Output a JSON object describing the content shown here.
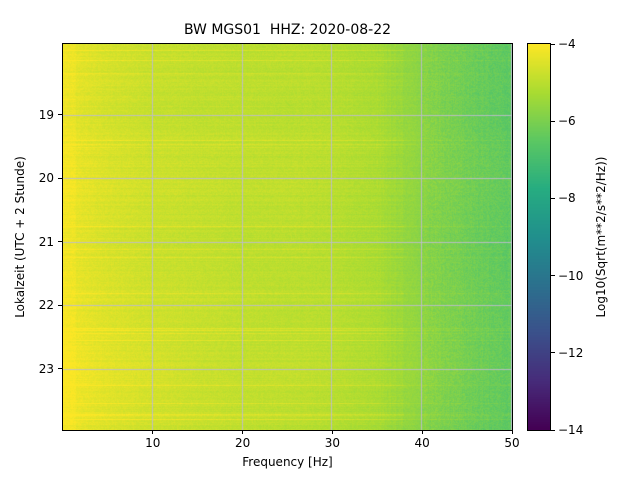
{
  "title": "BW MGS01  HHZ: 2020-08-22",
  "xlabel": "Frequency [Hz]",
  "ylabel": "Lokalzeit (UTC + 2 Stunde)",
  "axes": {
    "x_tick_labels": [
      "10",
      "20",
      "30",
      "40",
      "50"
    ],
    "y_tick_labels": [
      "19",
      "20",
      "21",
      "22",
      "23"
    ]
  },
  "colorbar": {
    "label": "Log10(Sqrt(m**2/s**2/Hz))",
    "min": -14,
    "max": -4,
    "ticks": [
      -4,
      -6,
      -8,
      -10,
      -12,
      -14
    ],
    "tick_labels": [
      "−4",
      "−6",
      "−8",
      "−10",
      "−12",
      "−14"
    ]
  },
  "chart_data": {
    "type": "heatmap",
    "title": "BW MGS01  HHZ: 2020-08-22",
    "xlabel": "Frequency [Hz]",
    "ylabel": "Lokalzeit (UTC + 2 Stunde)",
    "value_label": "Log10(Sqrt(m**2/s**2/Hz))",
    "colormap": "viridis",
    "grid": true,
    "grid_color": "#bcbccd",
    "background": "#ffffff",
    "xlim": [
      0,
      50
    ],
    "ylim": [
      17.88,
      23.97
    ],
    "y_direction": "down",
    "x_ticks": [
      10,
      20,
      30,
      40,
      50
    ],
    "y_ticks": [
      19,
      20,
      21,
      22,
      23
    ],
    "value_range": [
      -14,
      -4
    ],
    "freqs": [
      0,
      5,
      10,
      15,
      20,
      25,
      30,
      35,
      40,
      45,
      50
    ],
    "times": [
      18,
      19,
      20,
      21,
      22,
      23,
      24
    ],
    "values": [
      [
        -4.3,
        -4.6,
        -4.8,
        -4.9,
        -5.0,
        -5.0,
        -5.1,
        -5.3,
        -5.8,
        -6.2,
        -6.5
      ],
      [
        -4.3,
        -4.6,
        -4.8,
        -4.9,
        -4.9,
        -5.0,
        -5.0,
        -5.2,
        -5.7,
        -6.2,
        -6.5
      ],
      [
        -4.2,
        -4.5,
        -4.7,
        -4.8,
        -4.9,
        -4.9,
        -5.0,
        -5.2,
        -5.7,
        -6.1,
        -6.4
      ],
      [
        -4.3,
        -4.6,
        -4.8,
        -4.9,
        -5.0,
        -5.0,
        -5.1,
        -5.3,
        -5.8,
        -6.2,
        -6.5
      ],
      [
        -4.2,
        -4.5,
        -4.7,
        -4.8,
        -4.9,
        -5.0,
        -5.0,
        -5.2,
        -5.7,
        -6.1,
        -6.4
      ],
      [
        -4.1,
        -4.4,
        -4.6,
        -4.8,
        -4.9,
        -4.9,
        -5.0,
        -5.2,
        -5.6,
        -6.1,
        -6.4
      ],
      [
        -4.2,
        -4.5,
        -4.7,
        -4.8,
        -4.9,
        -5.0,
        -5.1,
        -5.3,
        -5.8,
        -6.2,
        -6.5
      ]
    ]
  }
}
